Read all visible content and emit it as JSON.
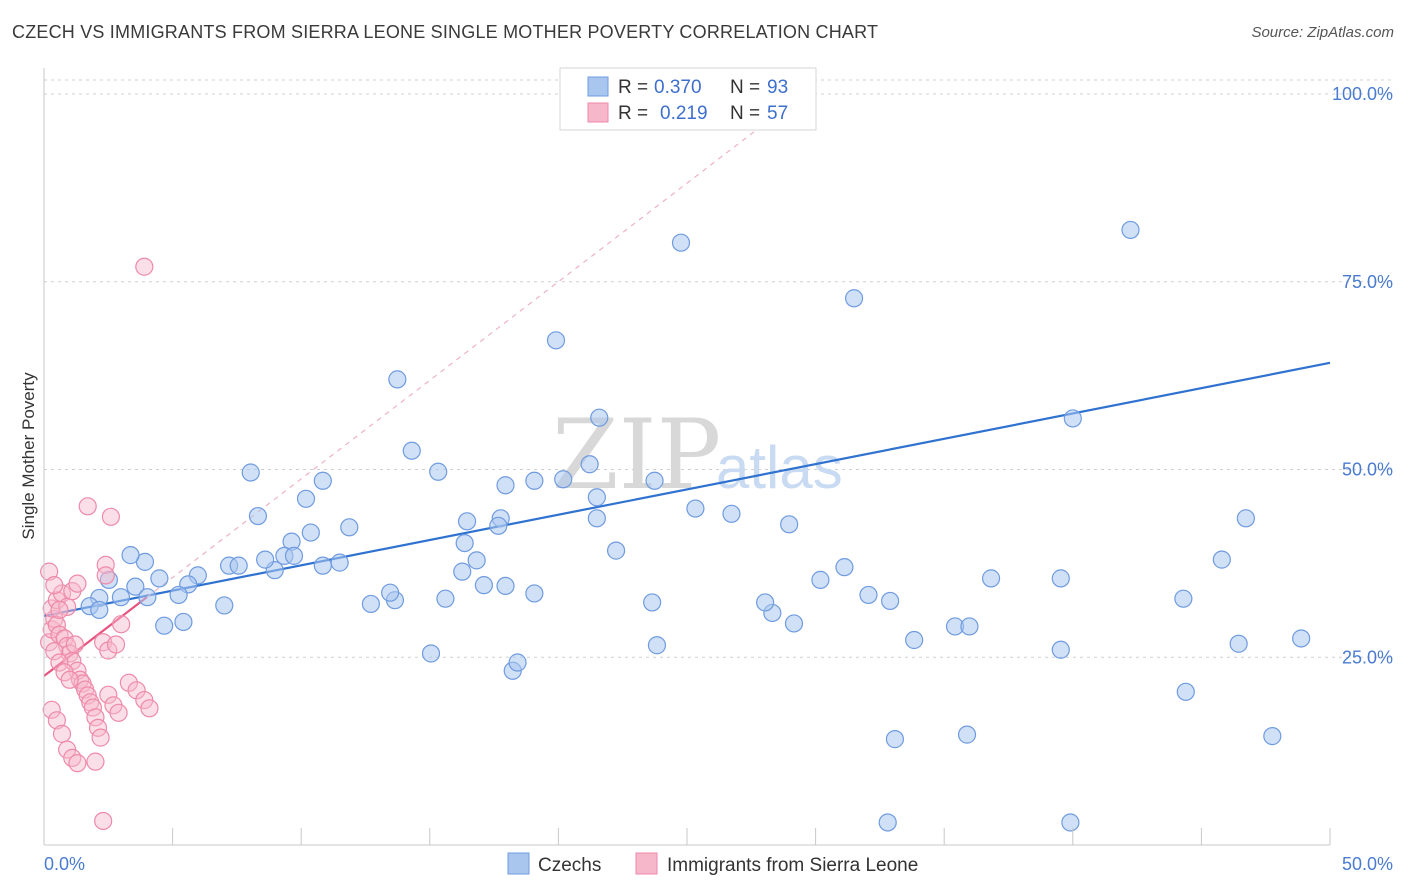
{
  "header": {
    "title": "CZECH VS IMMIGRANTS FROM SIERRA LEONE SINGLE MOTHER POVERTY CORRELATION CHART",
    "source": "Source: ZipAtlas.com"
  },
  "watermark": {
    "zip": "ZIP",
    "atlas": "atlas"
  },
  "legend_box": {
    "rows": [
      {
        "r_label": "R =",
        "r_value": "0.370",
        "n_label": "N =",
        "n_value": "93"
      },
      {
        "r_label": "R =",
        "r_value": "0.219",
        "n_label": "N =",
        "n_value": "57"
      }
    ]
  },
  "bottom_legend": {
    "czechs": "Czechs",
    "sierra_leone": "Immigrants from Sierra Leone"
  },
  "colors": {
    "czech_fill": "#a9c6ef",
    "czech_stroke": "#6f9be0",
    "czech_line": "#2f72d0",
    "sl_fill": "#f7b7cb",
    "sl_stroke": "#ee8aa9",
    "sl_line": "#e8537f",
    "grid": "#d0d0d0",
    "axis_text": "#4a7bd0"
  },
  "chart_data": {
    "type": "scatter",
    "title": "CZECH VS IMMIGRANTS FROM SIERRA LEONE SINGLE MOTHER POVERTY CORRELATION CHART",
    "xlabel": "",
    "ylabel": "Single Mother Poverty",
    "xlim": [
      0,
      50
    ],
    "ylim": [
      0,
      100
    ],
    "x_tick_labels": [
      "0.0%",
      "50.0%"
    ],
    "y_tick_labels": [
      "25.0%",
      "50.0%",
      "75.0%",
      "100.0%"
    ],
    "y_ticks": [
      25,
      50,
      75,
      100
    ],
    "grid": "horizontal dashed",
    "legend": "top-center",
    "series": [
      {
        "name": "Czechs",
        "R": 0.37,
        "N": 93,
        "trend": {
          "x": [
            0,
            50
          ],
          "y": [
            30.5,
            64.2
          ]
        },
        "points": [
          [
            39.4,
            35.5
          ],
          [
            42.3,
            35.5
          ],
          [
            42.7,
            3.0
          ],
          [
            35.1,
            3.0
          ],
          [
            19.5,
            23.2
          ],
          [
            47.4,
            32.8
          ],
          [
            16.1,
            25.5
          ],
          [
            26.5,
            80.2
          ],
          [
            45.2,
            81.9
          ],
          [
            33.7,
            72.8
          ],
          [
            32.3,
            35.3
          ],
          [
            15.3,
            52.5
          ],
          [
            16.4,
            49.7
          ],
          [
            11.1,
            41.6
          ],
          [
            19.2,
            47.9
          ],
          [
            21.3,
            67.2
          ],
          [
            42.8,
            56.8
          ],
          [
            4.2,
            37.7
          ],
          [
            8.6,
            49.6
          ],
          [
            10.9,
            46.1
          ],
          [
            11.6,
            48.5
          ],
          [
            14.6,
            32.6
          ],
          [
            17.5,
            40.2
          ],
          [
            19.0,
            43.5
          ],
          [
            22.7,
            50.7
          ],
          [
            23.0,
            46.3
          ],
          [
            25.4,
            48.5
          ],
          [
            23.1,
            56.9
          ],
          [
            20.4,
            48.5
          ],
          [
            21.6,
            48.7
          ],
          [
            18.9,
            42.5
          ],
          [
            25.5,
            26.6
          ],
          [
            12.7,
            42.3
          ],
          [
            19.7,
            24.3
          ],
          [
            14.7,
            62.0
          ],
          [
            6.4,
            35.9
          ],
          [
            7.7,
            37.2
          ],
          [
            9.6,
            36.6
          ],
          [
            10.3,
            40.4
          ],
          [
            6.0,
            34.7
          ],
          [
            5.6,
            33.3
          ],
          [
            4.8,
            35.5
          ],
          [
            3.8,
            34.4
          ],
          [
            3.2,
            33.0
          ],
          [
            2.3,
            32.9
          ],
          [
            1.9,
            31.8
          ],
          [
            2.3,
            31.3
          ],
          [
            2.7,
            35.3
          ],
          [
            3.6,
            38.6
          ],
          [
            4.3,
            33.0
          ],
          [
            5.0,
            29.2
          ],
          [
            5.8,
            29.7
          ],
          [
            7.5,
            31.9
          ],
          [
            8.1,
            37.2
          ],
          [
            8.9,
            43.8
          ],
          [
            9.2,
            38.0
          ],
          [
            10.0,
            38.5
          ],
          [
            10.4,
            38.5
          ],
          [
            11.6,
            37.2
          ],
          [
            12.3,
            37.6
          ],
          [
            13.6,
            32.1
          ],
          [
            14.4,
            33.6
          ],
          [
            16.7,
            32.8
          ],
          [
            17.4,
            36.4
          ],
          [
            17.6,
            43.1
          ],
          [
            18.0,
            37.9
          ],
          [
            18.3,
            34.6
          ],
          [
            19.2,
            34.5
          ],
          [
            20.4,
            33.5
          ],
          [
            23.0,
            43.5
          ],
          [
            23.8,
            39.2
          ],
          [
            25.3,
            32.3
          ],
          [
            27.1,
            44.8
          ],
          [
            28.6,
            44.1
          ],
          [
            30.3,
            30.9
          ],
          [
            31.0,
            42.7
          ],
          [
            33.3,
            37.0
          ],
          [
            35.4,
            14.1
          ],
          [
            38.4,
            14.7
          ],
          [
            37.9,
            29.1
          ],
          [
            38.5,
            29.1
          ],
          [
            42.3,
            26.0
          ],
          [
            47.5,
            20.4
          ],
          [
            50.0,
            43.5
          ],
          [
            51.1,
            14.5
          ],
          [
            52.3,
            27.5
          ],
          [
            49.0,
            38.0
          ],
          [
            49.7,
            26.8
          ],
          [
            36.2,
            27.3
          ],
          [
            35.2,
            32.5
          ],
          [
            34.3,
            33.3
          ],
          [
            30.0,
            32.3
          ],
          [
            31.2,
            29.5
          ]
        ]
      },
      {
        "name": "Immigrants from Sierra Leone",
        "R": 0.219,
        "N": 57,
        "trend": {
          "x": [
            0,
            4.0
          ],
          "y": [
            22.5,
            33.0
          ]
        },
        "points": [
          [
            0.2,
            27.0
          ],
          [
            0.3,
            28.7
          ],
          [
            0.4,
            30.1
          ],
          [
            0.5,
            29.3
          ],
          [
            0.6,
            28.0
          ],
          [
            0.8,
            27.5
          ],
          [
            0.9,
            26.5
          ],
          [
            1.0,
            25.5
          ],
          [
            1.1,
            24.5
          ],
          [
            1.2,
            26.7
          ],
          [
            1.3,
            23.2
          ],
          [
            1.4,
            22.0
          ],
          [
            1.5,
            21.5
          ],
          [
            1.6,
            20.7
          ],
          [
            1.7,
            19.9
          ],
          [
            1.8,
            19.0
          ],
          [
            1.9,
            18.3
          ],
          [
            2.0,
            17.0
          ],
          [
            2.1,
            15.6
          ],
          [
            2.2,
            14.3
          ],
          [
            0.3,
            31.5
          ],
          [
            0.5,
            32.6
          ],
          [
            0.7,
            33.5
          ],
          [
            0.9,
            31.7
          ],
          [
            1.1,
            33.8
          ],
          [
            1.3,
            34.8
          ],
          [
            0.4,
            25.8
          ],
          [
            0.6,
            24.3
          ],
          [
            0.8,
            23.0
          ],
          [
            1.0,
            22.0
          ],
          [
            0.3,
            18.0
          ],
          [
            0.5,
            16.6
          ],
          [
            0.7,
            14.8
          ],
          [
            0.9,
            12.7
          ],
          [
            1.1,
            11.6
          ],
          [
            1.3,
            10.9
          ],
          [
            2.5,
            20.0
          ],
          [
            2.7,
            18.6
          ],
          [
            2.9,
            17.6
          ],
          [
            3.3,
            21.6
          ],
          [
            3.6,
            20.6
          ],
          [
            3.9,
            19.3
          ],
          [
            4.1,
            18.2
          ],
          [
            2.3,
            27.0
          ],
          [
            2.5,
            25.9
          ],
          [
            2.8,
            26.7
          ],
          [
            3.0,
            29.4
          ],
          [
            1.7,
            45.1
          ],
          [
            2.6,
            43.7
          ],
          [
            2.4,
            37.3
          ],
          [
            2.4,
            35.9
          ],
          [
            3.9,
            77.0
          ],
          [
            2.0,
            11.1
          ],
          [
            2.3,
            3.2
          ],
          [
            0.2,
            36.4
          ],
          [
            0.4,
            34.6
          ],
          [
            0.6,
            31.3
          ]
        ]
      }
    ]
  }
}
